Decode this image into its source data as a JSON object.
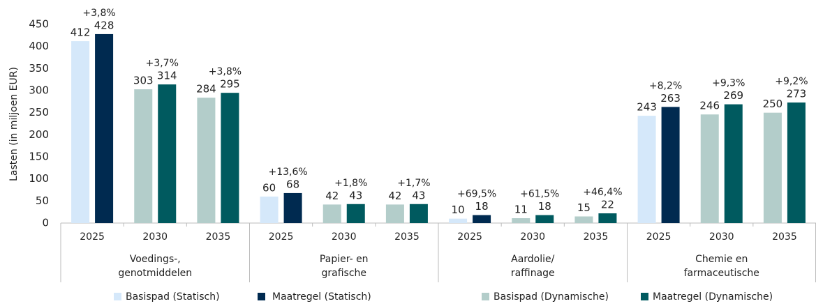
{
  "chart_data": {
    "type": "bar",
    "y_label": "Lasten (in miljoen EUR)",
    "groups": [
      {
        "name": [
          "Voedings-,",
          "genotmiddelen"
        ],
        "categories": [
          "2025",
          "2030",
          "2035"
        ]
      },
      {
        "name": [
          "Papier- en",
          "grafische"
        ],
        "categories": [
          "2025",
          "2030",
          "2035"
        ]
      },
      {
        "name": [
          "Aardolie/",
          "raffinage"
        ],
        "categories": [
          "2025",
          "2030",
          "2035"
        ]
      },
      {
        "name": [
          "Chemie en",
          "farmaceutische"
        ],
        "categories": [
          "2025",
          "2030",
          "2035"
        ]
      }
    ],
    "series": [
      {
        "name": "Basispad (Statisch)",
        "color": "#d5e8fa",
        "values": [
          412,
          null,
          null,
          60,
          null,
          null,
          10,
          null,
          null,
          243,
          null,
          null
        ]
      },
      {
        "name": "Maatregel (Statisch)",
        "color": "#002a50",
        "values": [
          428,
          null,
          null,
          68,
          null,
          null,
          18,
          null,
          null,
          263,
          null,
          null
        ]
      },
      {
        "name": "Basispad (Dynamische)",
        "color": "#b3cdca",
        "values": [
          null,
          303,
          284,
          null,
          42,
          42,
          null,
          11,
          15,
          null,
          246,
          250
        ]
      },
      {
        "name": "Maatregel (Dynamische)",
        "color": "#005a5f",
        "values": [
          null,
          314,
          295,
          null,
          43,
          43,
          null,
          18,
          22,
          null,
          269,
          273
        ]
      }
    ],
    "annotations": [
      "+3,8%",
      "+3,7%",
      "+3,8%",
      "+13,6%",
      "+1,8%",
      "+1,7%",
      "+69,5%",
      "+61,5%",
      "+46,4%",
      "+8,2%",
      "+9,3%",
      "+9,2%"
    ],
    "ylim": [
      0,
      450
    ],
    "yticks": [
      0,
      50,
      100,
      150,
      200,
      250,
      300,
      350,
      400,
      450
    ],
    "grid": false
  }
}
